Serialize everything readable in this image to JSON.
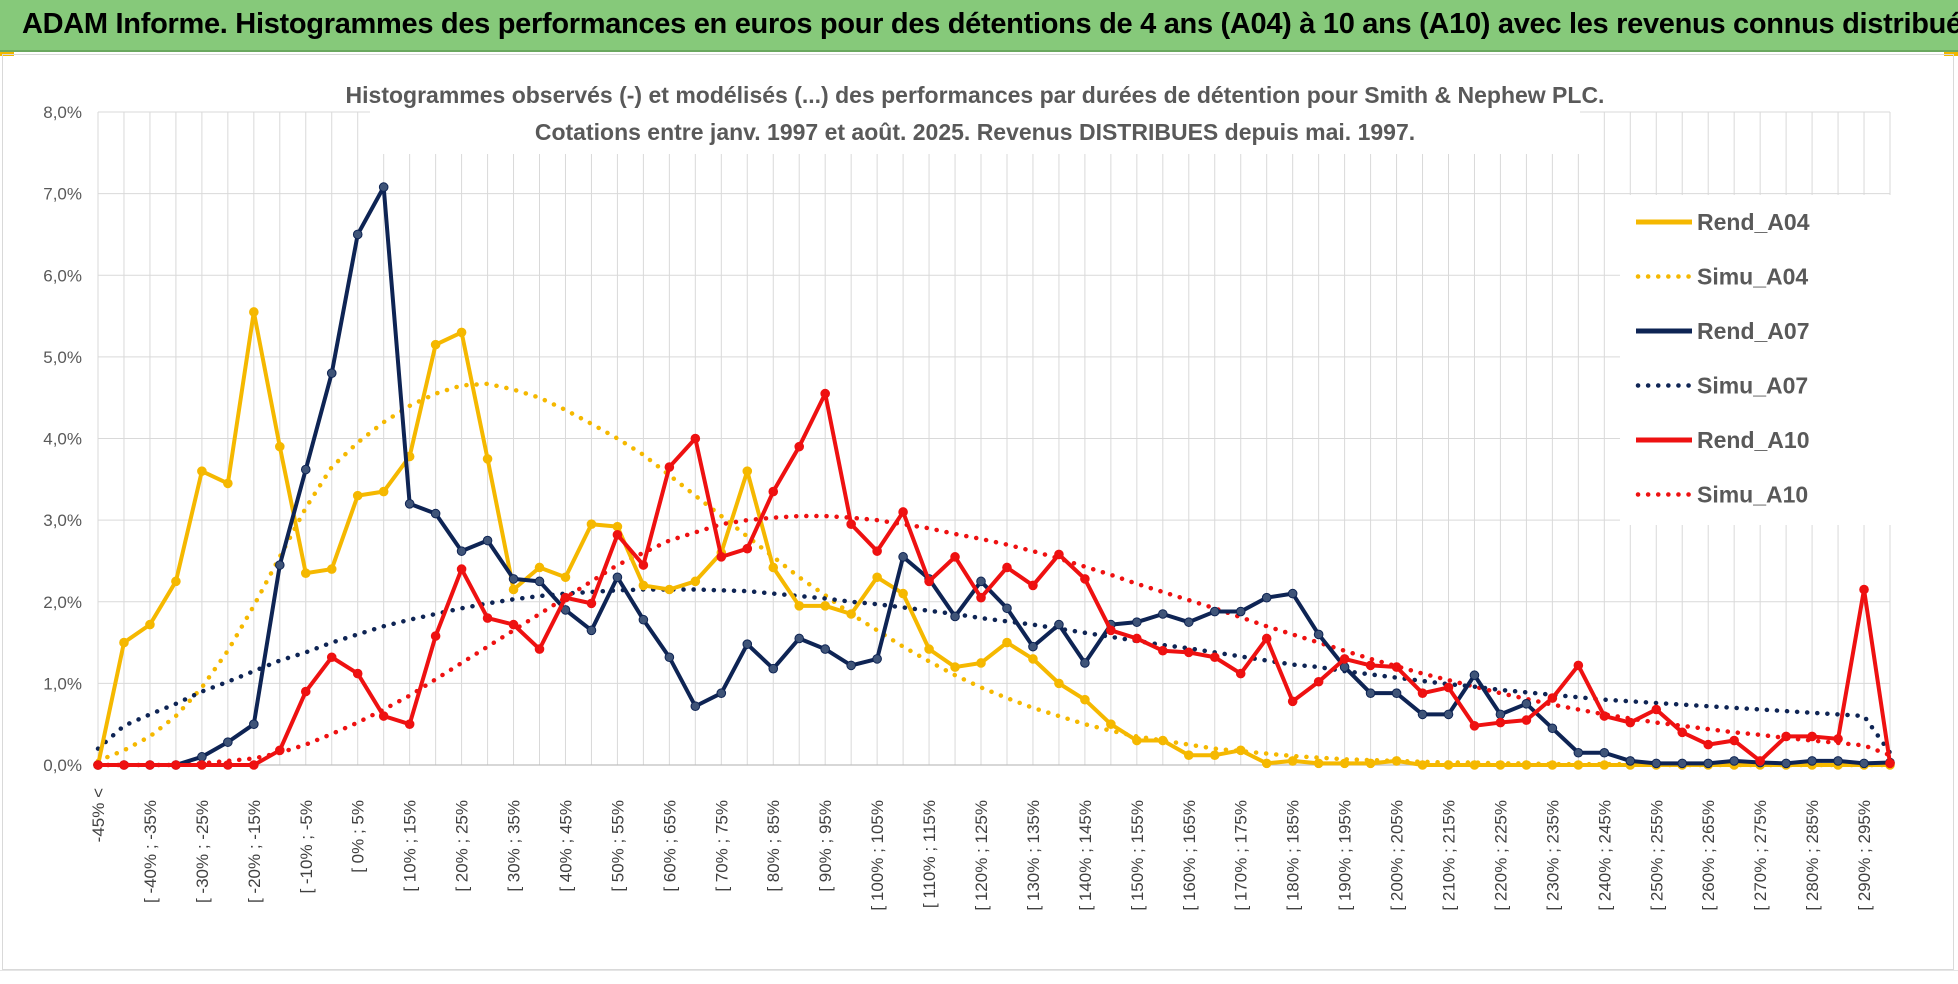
{
  "header": {
    "title": "ADAM Informe. Histogrammes des performances en euros pour des détentions de 4 ans (A04) à 10 ans (A10) avec les revenus connus distribués"
  },
  "colors": {
    "banner": "#86c97a",
    "grid": "#d9d9d9",
    "A04": "#f5b800",
    "A07": "#0e2454",
    "A10": "#ee1111"
  },
  "chart_data": {
    "type": "line",
    "title": "Histogrammes observés (-) et modélisés (...) des performances par durées de détention pour Smith & Nephew PLC.",
    "subtitle": "Cotations entre janv. 1997 et août. 2025. Revenus DISTRIBUES depuis mai. 1997.",
    "y_axis": {
      "min": 0,
      "max": 8,
      "unit": "%",
      "ticks": [
        "0,0%",
        "1,0%",
        "2,0%",
        "3,0%",
        "4,0%",
        "5,0%",
        "6,0%",
        "7,0%",
        "8,0%"
      ]
    },
    "x_tick_labels": [
      "-45% <",
      "[ -40% ; -35%",
      "[ -30% ; -25%",
      "[ -20% ; -15%",
      "[ -10% ; -5%",
      "[ 0% ; 5%",
      "[ 10% ; 15%",
      "[ 20% ; 25%",
      "[ 30% ; 35%",
      "[ 40% ; 45%",
      "[ 50% ; 55%",
      "[ 60% ; 65%",
      "[ 70% ; 75%",
      "[ 80% ; 85%",
      "[ 90% ; 95%",
      "[ 100% ; 105%",
      "[ 110% ; 115%",
      "[ 120% ; 125%",
      "[ 130% ; 135%",
      "[ 140% ; 145%",
      "[ 150% ; 155%",
      "[ 160% ; 165%",
      "[ 170% ; 175%",
      "[ 180% ; 185%",
      "[ 190% ; 195%",
      "[ 200% ; 205%",
      "[ 210% ; 215%",
      "[ 220% ; 225%",
      "[ 230% ; 235%",
      "[ 240% ; 245%",
      "[ 250% ; 255%",
      "[ 260% ; 265%",
      "[ 270% ; 275%",
      "[ 280% ; 285%",
      "[ 290% ; 295%"
    ],
    "legend_position": "right",
    "grid": true,
    "series": [
      {
        "name": "Rend_A04",
        "style": "solid",
        "color": "#f5b800",
        "values": [
          0.0,
          1.5,
          1.72,
          2.25,
          3.6,
          3.45,
          5.55,
          3.9,
          2.35,
          2.4,
          3.3,
          3.35,
          3.78,
          5.15,
          5.3,
          3.75,
          2.15,
          2.42,
          2.3,
          2.95,
          2.92,
          2.2,
          2.15,
          2.25,
          2.6,
          3.6,
          2.42,
          1.95,
          1.95,
          1.85,
          2.3,
          2.1,
          1.42,
          1.2,
          1.25,
          1.5,
          1.3,
          1.0,
          0.8,
          0.5,
          0.3,
          0.3,
          0.12,
          0.12,
          0.18,
          0.02,
          0.05,
          0.02,
          0.02,
          0.02,
          0.05,
          0.0,
          0.0,
          0.0,
          0.0,
          0.0,
          0.0,
          0.0,
          0.0,
          0.0,
          0.0,
          0.0,
          0.0,
          0.0,
          0.0,
          0.0,
          0.0,
          0.0,
          0.0,
          0.0
        ]
      },
      {
        "name": "Simu_A04",
        "style": "dotted",
        "color": "#f5b800",
        "values": [
          0.05,
          0.18,
          0.35,
          0.6,
          0.95,
          1.4,
          1.95,
          2.55,
          3.15,
          3.65,
          3.95,
          4.2,
          4.4,
          4.55,
          4.65,
          4.67,
          4.6,
          4.5,
          4.35,
          4.18,
          4.0,
          3.8,
          3.55,
          3.3,
          3.05,
          2.8,
          2.55,
          2.3,
          2.08,
          1.85,
          1.65,
          1.45,
          1.27,
          1.1,
          0.95,
          0.82,
          0.7,
          0.6,
          0.5,
          0.42,
          0.35,
          0.3,
          0.25,
          0.2,
          0.17,
          0.14,
          0.11,
          0.09,
          0.07,
          0.06,
          0.05,
          0.04,
          0.03,
          0.03,
          0.02,
          0.02,
          0.01,
          0.01,
          0.01,
          0.01,
          0.0,
          0.0,
          0.0,
          0.0,
          0.0,
          0.0,
          0.0,
          0.0,
          0.0,
          0.0
        ]
      },
      {
        "name": "Rend_A07",
        "style": "solid",
        "color": "#0e2454",
        "values": [
          0.0,
          0.0,
          0.0,
          0.0,
          0.1,
          0.28,
          0.5,
          2.45,
          3.62,
          4.8,
          6.5,
          7.08,
          3.2,
          3.08,
          2.62,
          2.75,
          2.28,
          2.25,
          1.9,
          1.65,
          2.3,
          1.78,
          1.32,
          0.72,
          0.88,
          1.48,
          1.18,
          1.55,
          1.42,
          1.22,
          1.3,
          2.55,
          2.28,
          1.82,
          2.25,
          1.92,
          1.45,
          1.72,
          1.25,
          1.72,
          1.75,
          1.85,
          1.75,
          1.88,
          1.88,
          2.05,
          2.1,
          1.6,
          1.2,
          0.88,
          0.88,
          0.62,
          0.62,
          1.1,
          0.62,
          0.75,
          0.45,
          0.15,
          0.15,
          0.05,
          0.02,
          0.02,
          0.02,
          0.05,
          0.03,
          0.02,
          0.05,
          0.05,
          0.02,
          0.03
        ]
      },
      {
        "name": "Simu_A07",
        "style": "dotted",
        "color": "#0e2454",
        "values": [
          0.2,
          0.48,
          0.62,
          0.75,
          0.9,
          1.02,
          1.15,
          1.28,
          1.38,
          1.5,
          1.6,
          1.7,
          1.78,
          1.85,
          1.92,
          1.98,
          2.03,
          2.07,
          2.1,
          2.12,
          2.14,
          2.15,
          2.15,
          2.15,
          2.14,
          2.13,
          2.1,
          2.07,
          2.04,
          2.0,
          1.97,
          1.93,
          1.89,
          1.85,
          1.8,
          1.76,
          1.72,
          1.67,
          1.62,
          1.57,
          1.52,
          1.47,
          1.43,
          1.38,
          1.33,
          1.28,
          1.23,
          1.2,
          1.15,
          1.11,
          1.07,
          1.03,
          0.99,
          0.96,
          0.92,
          0.89,
          0.86,
          0.83,
          0.8,
          0.78,
          0.76,
          0.74,
          0.72,
          0.7,
          0.68,
          0.66,
          0.64,
          0.62,
          0.6,
          0.15
        ]
      },
      {
        "name": "Rend_A10",
        "style": "solid",
        "color": "#ee1111",
        "values": [
          0.0,
          0.0,
          0.0,
          0.0,
          0.0,
          0.0,
          0.0,
          0.18,
          0.9,
          1.32,
          1.12,
          0.6,
          0.5,
          1.58,
          2.4,
          1.8,
          1.72,
          1.42,
          2.05,
          1.98,
          2.82,
          2.45,
          3.65,
          4.0,
          2.55,
          2.65,
          3.35,
          3.9,
          4.55,
          2.95,
          2.62,
          3.1,
          2.25,
          2.55,
          2.05,
          2.42,
          2.2,
          2.58,
          2.28,
          1.65,
          1.55,
          1.4,
          1.38,
          1.32,
          1.12,
          1.55,
          0.78,
          1.02,
          1.3,
          1.22,
          1.2,
          0.88,
          0.95,
          0.48,
          0.52,
          0.55,
          0.82,
          1.22,
          0.6,
          0.52,
          0.68,
          0.4,
          0.25,
          0.3,
          0.05,
          0.35,
          0.35,
          0.32,
          2.15,
          0.02
        ]
      },
      {
        "name": "Simu_A10",
        "style": "dotted",
        "color": "#ee1111",
        "values": [
          0.0,
          0.0,
          0.0,
          0.0,
          0.02,
          0.05,
          0.08,
          0.15,
          0.25,
          0.38,
          0.52,
          0.68,
          0.85,
          1.05,
          1.25,
          1.45,
          1.65,
          1.85,
          2.05,
          2.25,
          2.45,
          2.6,
          2.75,
          2.85,
          2.95,
          3.0,
          3.03,
          3.05,
          3.05,
          3.03,
          3.0,
          2.95,
          2.9,
          2.83,
          2.77,
          2.7,
          2.62,
          2.53,
          2.43,
          2.33,
          2.22,
          2.12,
          2.02,
          1.92,
          1.81,
          1.7,
          1.6,
          1.5,
          1.4,
          1.3,
          1.21,
          1.12,
          1.04,
          0.96,
          0.88,
          0.81,
          0.74,
          0.68,
          0.62,
          0.57,
          0.52,
          0.48,
          0.44,
          0.4,
          0.37,
          0.33,
          0.3,
          0.27,
          0.24,
          0.12
        ]
      }
    ]
  }
}
